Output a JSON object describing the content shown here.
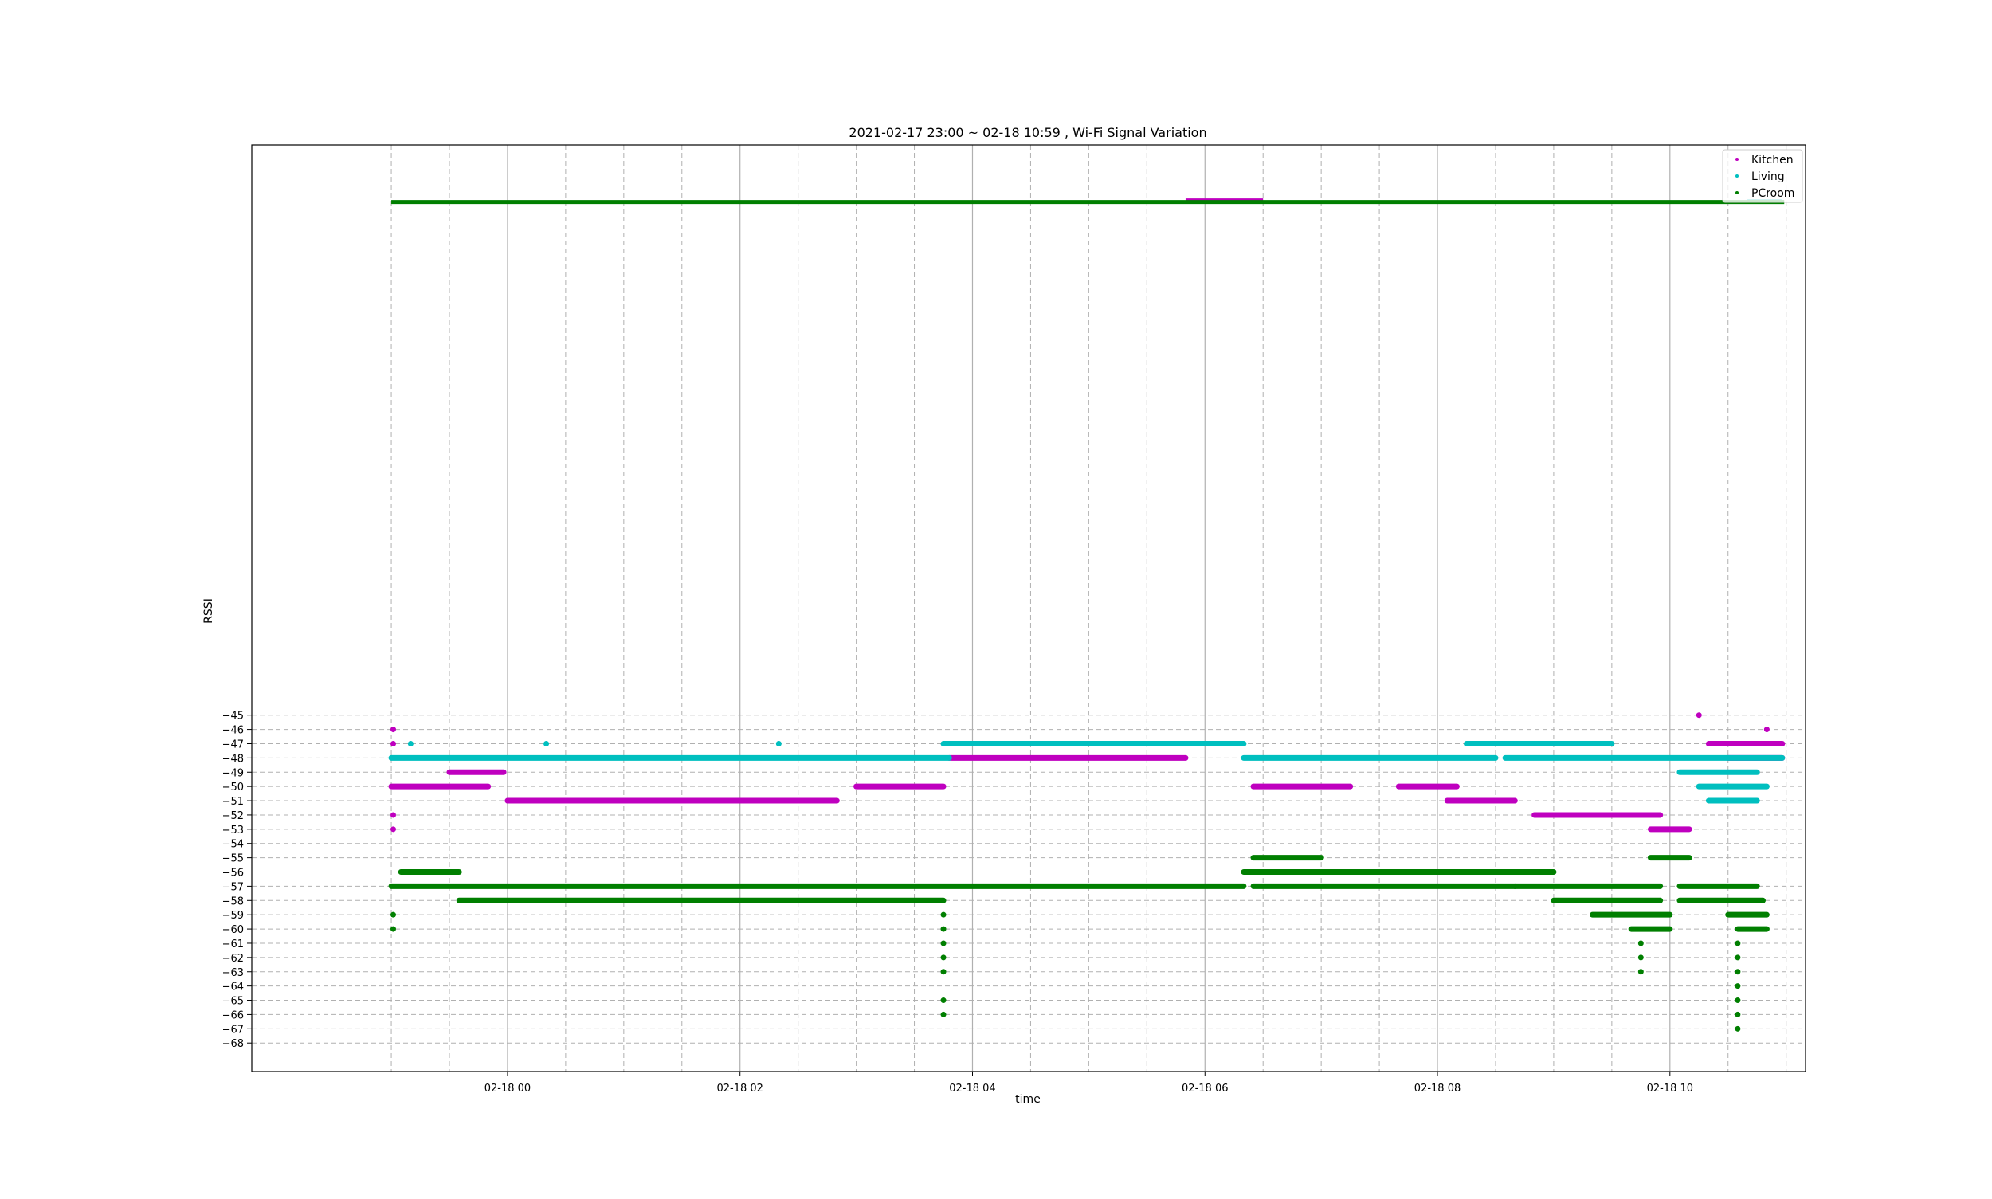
{
  "chart_data": {
    "type": "scatter",
    "title": "2021-02-17 23:00 ~ 02-18 10:59 , Wi-Fi Signal Variation",
    "xlabel": "time",
    "ylabel": "RSSI",
    "x_start": "2021-02-17 23:00",
    "x_end": "2021-02-18 10:59",
    "xlim": [
      "2021-02-17 21:48",
      "2021-02-18 11:10"
    ],
    "x_tick_labels": [
      "02-18 00",
      "02-18 02",
      "02-18 04",
      "02-18 06",
      "02-18 08",
      "02-18 10"
    ],
    "y_tick_labels": [
      "−45",
      "−46",
      "−47",
      "−48",
      "−49",
      "−50",
      "−51",
      "−52",
      "−53",
      "−54",
      "−55",
      "−56",
      "−57",
      "−58",
      "−59",
      "−60",
      "−61",
      "−62",
      "−63",
      "−64",
      "−65",
      "−66",
      "−67",
      "−68"
    ],
    "ylim": [
      -70,
      -5
    ],
    "outlier_band_rssi": -9,
    "grid": true,
    "legend_position": "top-right",
    "series": [
      {
        "name": "Kitchen",
        "color": "#bf00bf",
        "segments": [
          {
            "start": "2021-02-17 23:00",
            "end": "2021-02-17 23:50",
            "rssi": -50
          },
          {
            "start": "2021-02-17 23:30",
            "end": "2021-02-17 23:58",
            "rssi": -49
          },
          {
            "start": "2021-02-18 00:00",
            "end": "2021-02-18 01:10",
            "rssi": -51
          },
          {
            "start": "2021-02-18 00:45",
            "end": "2021-02-18 02:50",
            "rssi": -51
          },
          {
            "start": "2021-02-18 03:00",
            "end": "2021-02-18 03:45",
            "rssi": -50
          },
          {
            "start": "2021-02-18 03:48",
            "end": "2021-02-18 05:50",
            "rssi": -48
          },
          {
            "start": "2021-02-18 06:25",
            "end": "2021-02-18 07:15",
            "rssi": -50
          },
          {
            "start": "2021-02-18 07:40",
            "end": "2021-02-18 08:10",
            "rssi": -50
          },
          {
            "start": "2021-02-18 08:05",
            "end": "2021-02-18 08:40",
            "rssi": -51
          },
          {
            "start": "2021-02-18 08:50",
            "end": "2021-02-18 09:55",
            "rssi": -52
          },
          {
            "start": "2021-02-18 09:50",
            "end": "2021-02-18 10:10",
            "rssi": -53
          },
          {
            "start": "2021-02-18 10:20",
            "end": "2021-02-18 10:58",
            "rssi": -47
          },
          {
            "start": "2021-02-18 10:30",
            "end": "2021-02-18 10:58",
            "rssi": -48
          }
        ],
        "points": [
          {
            "time": "2021-02-17 23:01",
            "rssi": -46
          },
          {
            "time": "2021-02-17 23:01",
            "rssi": -47
          },
          {
            "time": "2021-02-17 23:01",
            "rssi": -52
          },
          {
            "time": "2021-02-17 23:01",
            "rssi": -53
          },
          {
            "time": "2021-02-18 10:15",
            "rssi": -45
          },
          {
            "time": "2021-02-18 10:50",
            "rssi": -46
          }
        ]
      },
      {
        "name": "Living",
        "color": "#00bfbf",
        "segments": [
          {
            "start": "2021-02-17 23:00",
            "end": "2021-02-18 03:48",
            "rssi": -48
          },
          {
            "start": "2021-02-18 03:45",
            "end": "2021-02-18 06:20",
            "rssi": -47
          },
          {
            "start": "2021-02-18 06:20",
            "end": "2021-02-18 08:30",
            "rssi": -48
          },
          {
            "start": "2021-02-18 08:15",
            "end": "2021-02-18 09:30",
            "rssi": -47
          },
          {
            "start": "2021-02-18 08:35",
            "end": "2021-02-18 10:58",
            "rssi": -48
          },
          {
            "start": "2021-02-18 10:05",
            "end": "2021-02-18 10:45",
            "rssi": -49
          },
          {
            "start": "2021-02-18 10:15",
            "end": "2021-02-18 10:50",
            "rssi": -50
          },
          {
            "start": "2021-02-18 10:20",
            "end": "2021-02-18 10:45",
            "rssi": -51
          }
        ],
        "points": [
          {
            "time": "2021-02-17 23:10",
            "rssi": -47
          },
          {
            "time": "2021-02-18 00:20",
            "rssi": -47
          },
          {
            "time": "2021-02-18 02:20",
            "rssi": -47
          }
        ]
      },
      {
        "name": "PCroom",
        "color": "#007f00",
        "segments": [
          {
            "start": "2021-02-17 23:00",
            "end": "2021-02-18 06:20",
            "rssi": -57
          },
          {
            "start": "2021-02-17 23:05",
            "end": "2021-02-17 23:35",
            "rssi": -56
          },
          {
            "start": "2021-02-17 23:35",
            "end": "2021-02-18 03:45",
            "rssi": -58
          },
          {
            "start": "2021-02-18 06:20",
            "end": "2021-02-18 09:00",
            "rssi": -56
          },
          {
            "start": "2021-02-18 06:25",
            "end": "2021-02-18 08:40",
            "rssi": -57
          },
          {
            "start": "2021-02-18 06:25",
            "end": "2021-02-18 07:00",
            "rssi": -55
          },
          {
            "start": "2021-02-18 08:40",
            "end": "2021-02-18 09:55",
            "rssi": -57
          },
          {
            "start": "2021-02-18 09:00",
            "end": "2021-02-18 09:55",
            "rssi": -58
          },
          {
            "start": "2021-02-18 09:20",
            "end": "2021-02-18 10:00",
            "rssi": -59
          },
          {
            "start": "2021-02-18 09:40",
            "end": "2021-02-18 10:00",
            "rssi": -60
          },
          {
            "start": "2021-02-18 09:50",
            "end": "2021-02-18 10:10",
            "rssi": -55
          },
          {
            "start": "2021-02-18 10:05",
            "end": "2021-02-18 10:45",
            "rssi": -57
          },
          {
            "start": "2021-02-18 10:05",
            "end": "2021-02-18 10:48",
            "rssi": -58
          },
          {
            "start": "2021-02-18 10:30",
            "end": "2021-02-18 10:50",
            "rssi": -59
          },
          {
            "start": "2021-02-18 10:35",
            "end": "2021-02-18 10:50",
            "rssi": -60
          }
        ],
        "points": [
          {
            "time": "2021-02-17 23:01",
            "rssi": -59
          },
          {
            "time": "2021-02-17 23:01",
            "rssi": -60
          },
          {
            "time": "2021-02-18 03:45",
            "rssi": -59
          },
          {
            "time": "2021-02-18 03:45",
            "rssi": -60
          },
          {
            "time": "2021-02-18 03:45",
            "rssi": -61
          },
          {
            "time": "2021-02-18 03:45",
            "rssi": -62
          },
          {
            "time": "2021-02-18 03:45",
            "rssi": -63
          },
          {
            "time": "2021-02-18 03:45",
            "rssi": -65
          },
          {
            "time": "2021-02-18 03:45",
            "rssi": -66
          },
          {
            "time": "2021-02-18 09:45",
            "rssi": -61
          },
          {
            "time": "2021-02-18 09:45",
            "rssi": -62
          },
          {
            "time": "2021-02-18 09:45",
            "rssi": -63
          },
          {
            "time": "2021-02-18 10:35",
            "rssi": -61
          },
          {
            "time": "2021-02-18 10:35",
            "rssi": -62
          },
          {
            "time": "2021-02-18 10:35",
            "rssi": -63
          },
          {
            "time": "2021-02-18 10:35",
            "rssi": -64
          },
          {
            "time": "2021-02-18 10:35",
            "rssi": -65
          },
          {
            "time": "2021-02-18 10:35",
            "rssi": -66
          },
          {
            "time": "2021-02-18 10:35",
            "rssi": -67
          }
        ]
      }
    ]
  }
}
